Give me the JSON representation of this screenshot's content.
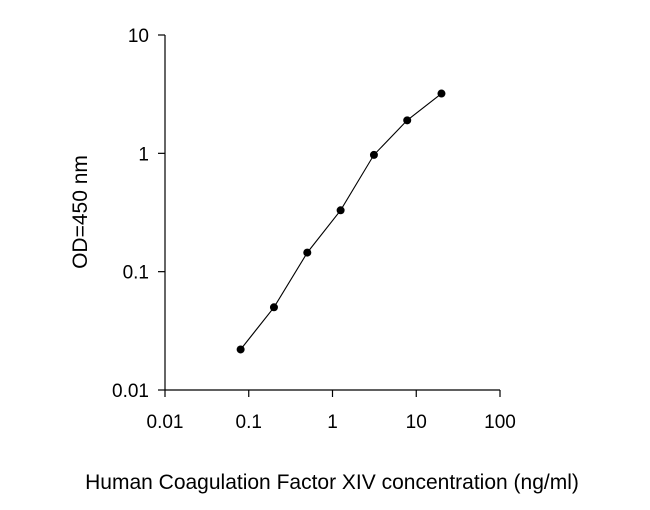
{
  "chart_data": {
    "type": "scatter",
    "title": "",
    "xlabel": "Human Coagulation Factor XIV concentration (ng/ml)",
    "ylabel": "OD=450 nm",
    "x_scale": "log",
    "y_scale": "log",
    "xlim": [
      0.01,
      100
    ],
    "ylim": [
      0.01,
      10
    ],
    "x_ticks": [
      0.01,
      0.1,
      1,
      10,
      100
    ],
    "x_tick_labels": [
      "0.01",
      "0.1",
      "1",
      "10",
      "100"
    ],
    "y_ticks": [
      0.01,
      0.1,
      1,
      10
    ],
    "y_tick_labels": [
      "0.01",
      "0.1",
      "1",
      "10"
    ],
    "grid": false,
    "legend": "none",
    "colors": {
      "line": "#000000",
      "marker": "#000000",
      "axis": "#000000"
    },
    "series": [
      {
        "x": [
          0.08,
          0.2,
          0.5,
          1.25,
          3.125,
          7.8,
          20
        ],
        "y": [
          0.022,
          0.05,
          0.145,
          0.33,
          0.97,
          1.9,
          3.2
        ]
      }
    ]
  }
}
